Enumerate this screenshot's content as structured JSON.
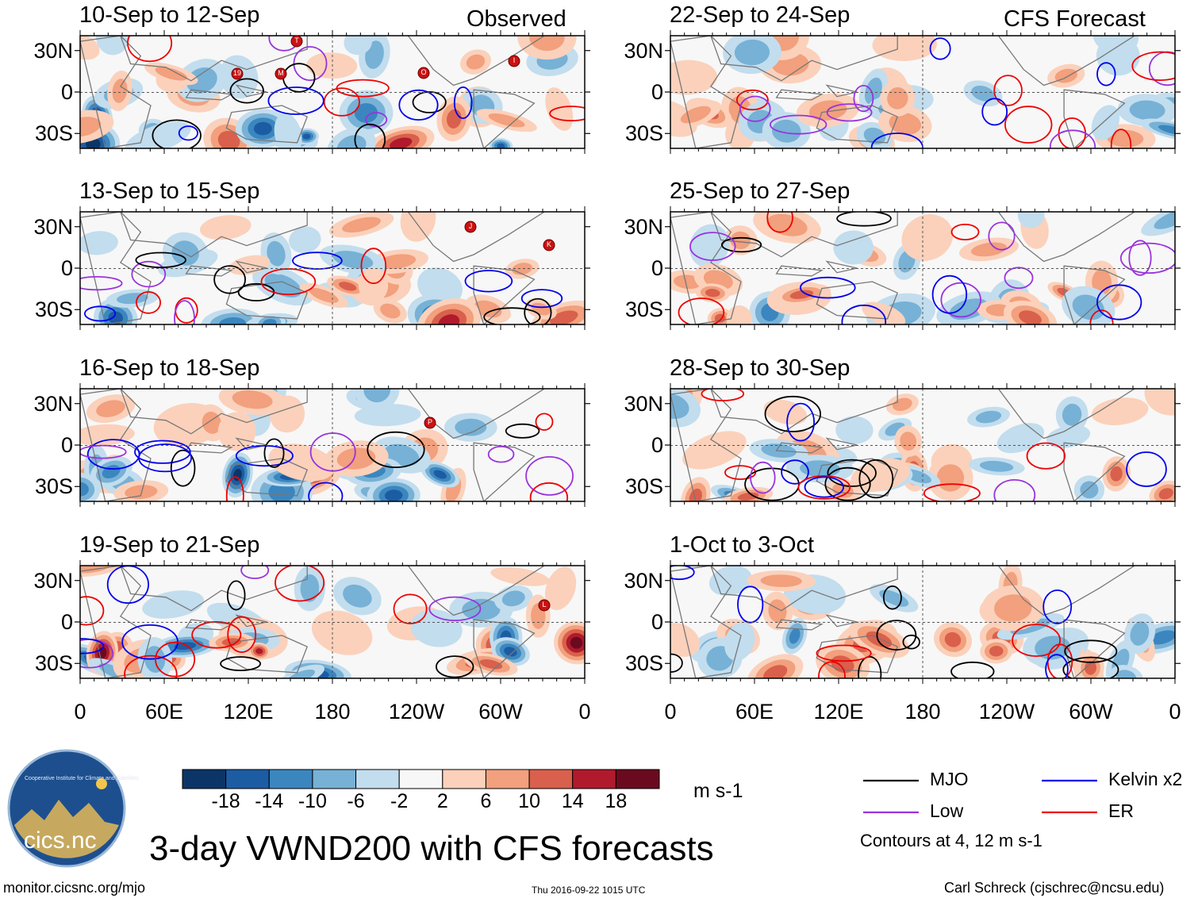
{
  "figure": {
    "main_title": "3-day VWND200 with CFS forecasts",
    "left_column_label": "Observed",
    "right_column_label": "CFS Forecast",
    "units": "m s-1",
    "footer_url": "monitor.cicsnc.org/mjo",
    "footer_timestamp": "Thu 2016-09-22 1015 UTC",
    "footer_author": "Carl Schreck (cjschrec@ncsu.edu)",
    "logo_text": "cics.nc",
    "logo_ring_text": "Cooperative Institute for Climate and Satellites",
    "contour_note": "Contours at 4, 12 m s-1"
  },
  "panels": {
    "left": [
      {
        "date_range": "10-Sep to 12-Sep"
      },
      {
        "date_range": "13-Sep to 15-Sep"
      },
      {
        "date_range": "16-Sep to 18-Sep"
      },
      {
        "date_range": "19-Sep to 21-Sep"
      }
    ],
    "right": [
      {
        "date_range": "22-Sep to 24-Sep"
      },
      {
        "date_range": "25-Sep to 27-Sep"
      },
      {
        "date_range": "28-Sep to 30-Sep"
      },
      {
        "date_range": "1-Oct to 3-Oct"
      }
    ]
  },
  "axes": {
    "lat_ticks": [
      "30N",
      "0",
      "30S"
    ],
    "lon_ticks": [
      "0",
      "60E",
      "120E",
      "180",
      "120W",
      "60W",
      "0"
    ]
  },
  "colorbar": {
    "tick_labels": [
      "-18",
      "-14",
      "-10",
      "-6",
      "-2",
      "2",
      "6",
      "10",
      "14",
      "18"
    ],
    "colors": [
      "#0b3567",
      "#1c5ca3",
      "#3b86bf",
      "#77b1d6",
      "#c2ddee",
      "#f7f7f7",
      "#fbd1bb",
      "#f2a07d",
      "#d9604c",
      "#b01a2c",
      "#6b0a1f"
    ]
  },
  "legend": {
    "items": [
      {
        "label": "MJO",
        "color": "#000000"
      },
      {
        "label": "Kelvin x2",
        "color": "#0000ee"
      },
      {
        "label": "Low",
        "color": "#9933dd"
      },
      {
        "label": "ER",
        "color": "#ee0000"
      }
    ]
  },
  "storm_markers": {
    "panel_1": [
      "T",
      "19",
      "M",
      "O",
      "I"
    ],
    "panel_2": [
      "J",
      "K"
    ],
    "panel_3": [
      "P"
    ],
    "panel_4": [
      "L"
    ]
  }
}
